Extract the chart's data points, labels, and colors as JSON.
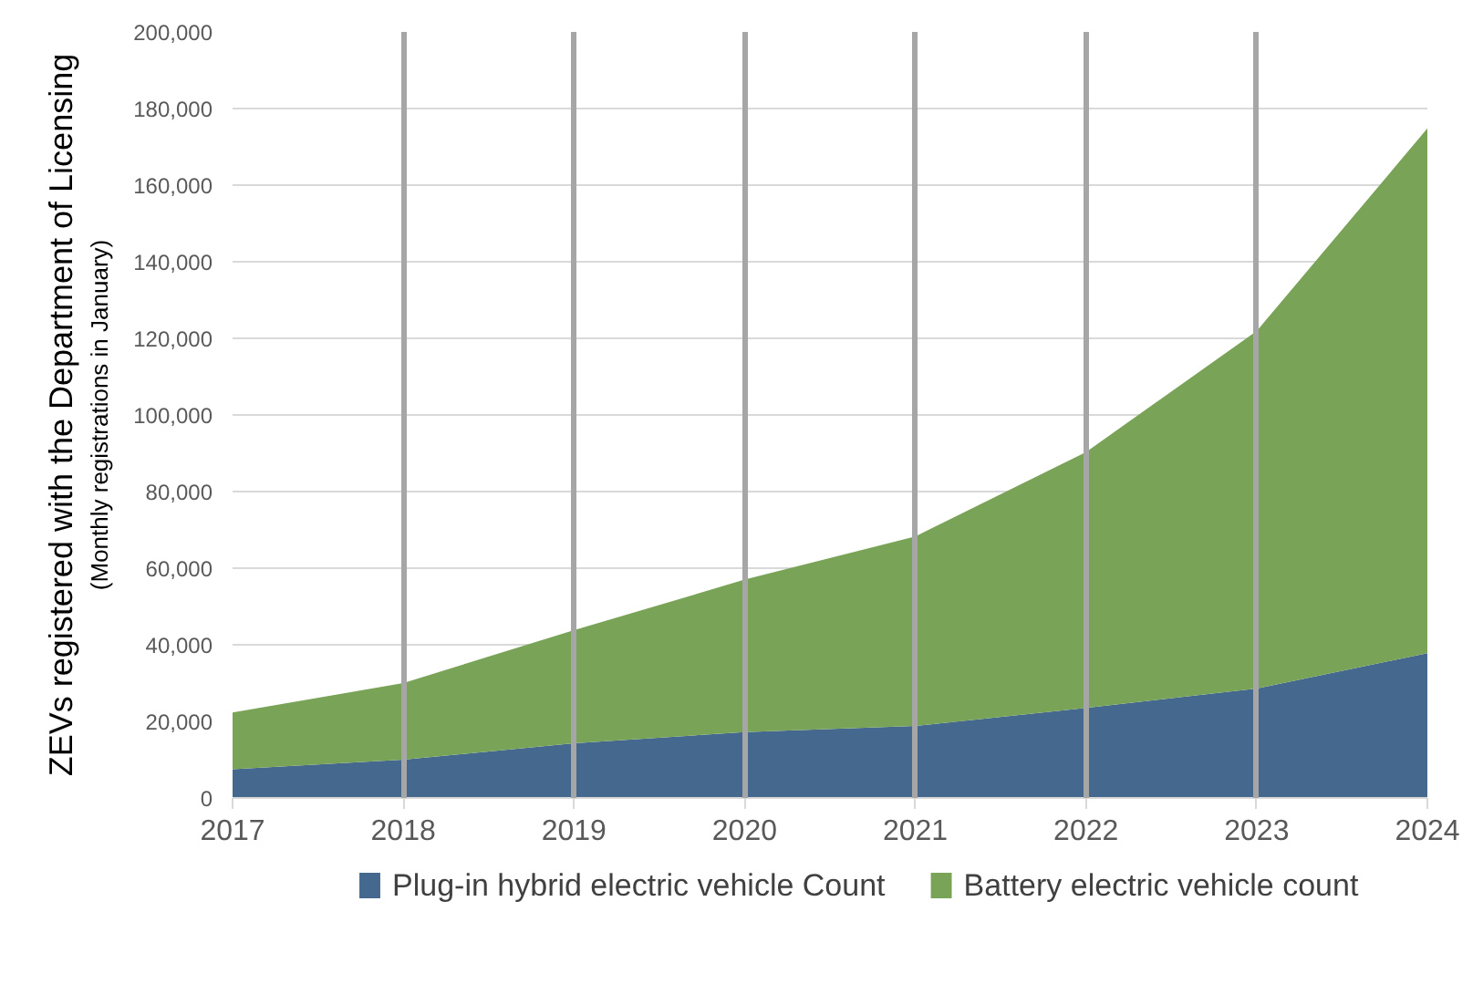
{
  "chart_data": {
    "type": "area",
    "stacked": true,
    "ylabel": "ZEVs registered with the Department of Licensing",
    "annotations": [
      "(Monthly registrations in January)"
    ],
    "categories": [
      "2017",
      "2018",
      "2019",
      "2020",
      "2021",
      "2022",
      "2023",
      "2024"
    ],
    "series": [
      {
        "name": "Plug-in hybrid electric vehicle Count",
        "color": "#44688e",
        "values": [
          7500,
          10000,
          14300,
          17200,
          18800,
          23500,
          28600,
          37800
        ]
      },
      {
        "name": "Battery electric vehicle count",
        "color": "#79a357",
        "values": [
          14800,
          20000,
          29500,
          39800,
          49500,
          66800,
          93300,
          137000
        ]
      }
    ],
    "ylim": [
      0,
      200000
    ],
    "yticks": [
      {
        "value": 0,
        "label": "0"
      },
      {
        "value": 20000,
        "label": "20,000"
      },
      {
        "value": 40000,
        "label": "40,000"
      },
      {
        "value": 60000,
        "label": "60,000"
      },
      {
        "value": 80000,
        "label": "80,000"
      },
      {
        "value": 100000,
        "label": "100,000"
      },
      {
        "value": 120000,
        "label": "120,000"
      },
      {
        "value": 140000,
        "label": "140,000"
      },
      {
        "value": 160000,
        "label": "160,000"
      },
      {
        "value": 180000,
        "label": "180,000"
      },
      {
        "value": 200000,
        "label": "200,000"
      }
    ],
    "grid": true,
    "legend": "bottom"
  }
}
